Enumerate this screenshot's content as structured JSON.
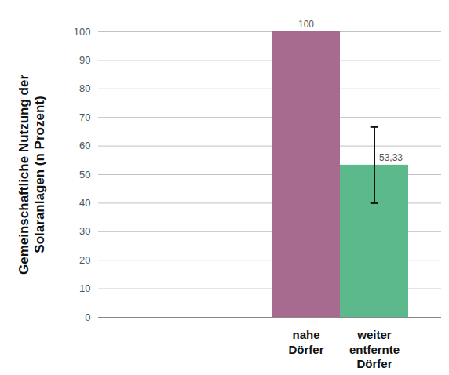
{
  "chart_data": {
    "type": "bar",
    "y_label": "Gemeinschaftliche Nutzung der Solaranlagen (n Prozent)",
    "categories": [
      "nahe Dörfer",
      "weiter entfernte Dörfer"
    ],
    "values": [
      100,
      53.33
    ],
    "value_labels": [
      "100",
      "53,33"
    ],
    "errors": [
      null,
      13.33
    ],
    "colors": [
      "#a66b8f",
      "#5cb98c"
    ],
    "ylim": [
      0,
      100
    ],
    "yticks": [
      0,
      10,
      20,
      30,
      40,
      50,
      60,
      70,
      80,
      90,
      100
    ],
    "grid": true,
    "data_labels": true
  }
}
